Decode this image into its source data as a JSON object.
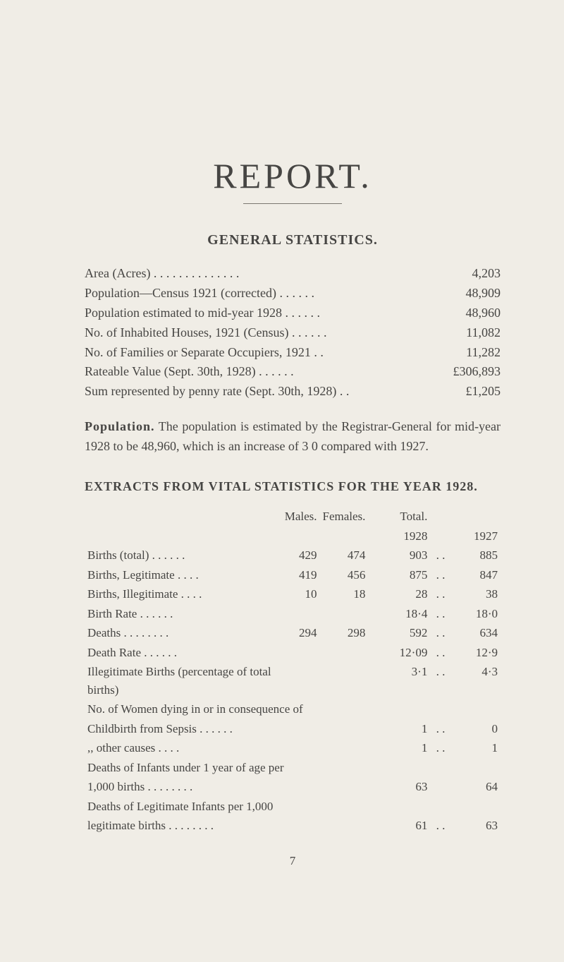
{
  "title": "REPORT.",
  "general": {
    "heading": "GENERAL STATISTICS.",
    "rows": [
      {
        "label": "Area (Acres)    . .       . .       . .       . .       . .       . .       . .",
        "value": "4,203"
      },
      {
        "label": "Population—Census 1921 (corrected)          . .       . .       . .",
        "value": "48,909"
      },
      {
        "label": "Population estimated to mid-year 1928        . .       . .       . .",
        "value": "48,960"
      },
      {
        "label": "No. of Inhabited Houses, 1921 (Census)   . .       . .       . .",
        "value": "11,082"
      },
      {
        "label": "No. of Families or Separate Occupiers, 1921              . .",
        "value": "11,282"
      },
      {
        "label": "Rateable Value (Sept. 30th, 1928)     . .       . .       . .",
        "value": "£306,893"
      },
      {
        "label": "Sum represented by penny rate (Sept. 30th, 1928) . .",
        "value": "£1,205"
      }
    ]
  },
  "population": {
    "label": "Population.",
    "text": " The population is estimated by the Registrar-General for mid-year 1928 to be 48,960, which is an increase of 3 0 compared with 1927."
  },
  "extracts": {
    "heading": "EXTRACTS FROM VITAL STATISTICS FOR THE YEAR 1928.",
    "col_males": "Males.",
    "col_females": "Females.",
    "col_total": "Total.",
    "year_a": "1928",
    "year_b": "1927",
    "rows": [
      {
        "label": "Births (total)   . .       . .       . .",
        "m": "429",
        "f": "474",
        "t": "903",
        "d": ". .",
        "y": "885"
      },
      {
        "label": "Births, Legitimate       . .       . .",
        "m": "419",
        "f": "456",
        "t": "875",
        "d": ". .",
        "y": "847"
      },
      {
        "label": "Births, Illegitimate     . .       . .",
        "m": "10",
        "f": "18",
        "t": "28",
        "d": ". .",
        "y": "38"
      },
      {
        "label": "Birth Rate       . .       . .       . .",
        "m": "",
        "f": "",
        "t": "18·4",
        "d": ". .",
        "y": "18·0"
      },
      {
        "label": "Deaths . .       . .       . .       . .",
        "m": "294",
        "f": "298",
        "t": "592",
        "d": ". .",
        "y": "634"
      },
      {
        "label": "Death Rate      . .       . .       . .",
        "m": "",
        "f": "",
        "t": "12·09",
        "d": ". .",
        "y": "12·9"
      },
      {
        "label": "Illegitimate Births (percentage of total births)",
        "m": "",
        "f": "",
        "t": "3·1",
        "d": ". .",
        "y": "4·3"
      }
    ],
    "women_heading": "No. of Women dying in or in consequence of",
    "women_rows": [
      {
        "label": "        Childbirth from Sepsis    . .       . .       . .",
        "t": "1",
        "d": ". .",
        "y": "0"
      },
      {
        "label": "               ,,              other causes     . .       . .",
        "t": "1",
        "d": ". .",
        "y": "1"
      }
    ],
    "infant_rows": [
      {
        "label1": "Deaths of Infants under 1 year of age per",
        "label2": "        1,000 births           . .       . .       . .       . .",
        "t": "63",
        "d": "",
        "y": "64"
      },
      {
        "label1": "Deaths of Legitimate Infants per 1,000",
        "label2": "        legitimate births . .       . .       . .       . .",
        "t": "61",
        "d": ". .",
        "y": "63"
      }
    ]
  },
  "page_number": "7"
}
